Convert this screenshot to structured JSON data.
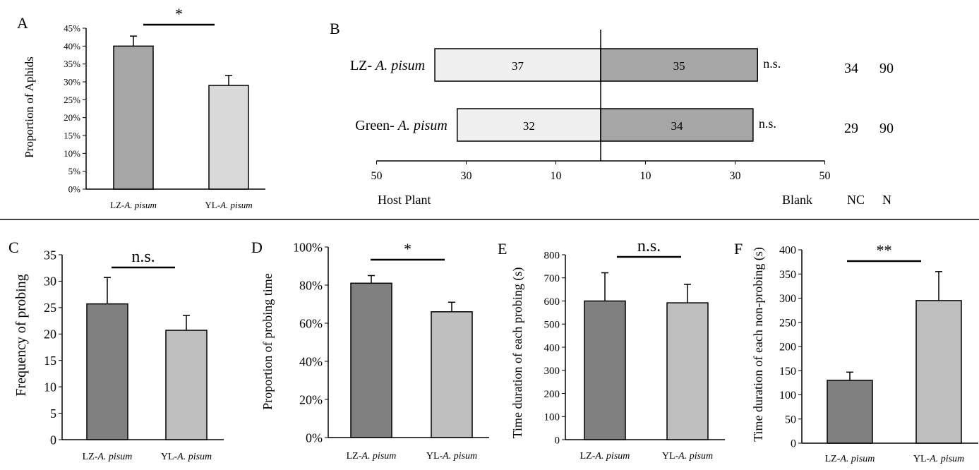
{
  "colors": {
    "dark_bar": "#808080",
    "a_lz_bar": "#a6a6a6",
    "light_bar": "#bfbfbf",
    "a_yl_bar": "#d9d9d9",
    "b_left_bar": "#f0f0f0",
    "b_right_bar": "#a6a6a6",
    "axis": "#000000"
  },
  "chart_data": [
    {
      "panel_label": "A",
      "type": "bar",
      "categories": [
        {
          "prefix": "LZ-",
          "species": "A. pisum"
        },
        {
          "prefix": "YL-",
          "species": "A. pisum"
        }
      ],
      "values": [
        40,
        29
      ],
      "errors": [
        2.8,
        2.8
      ],
      "ylabel": "Proportion of Aphids",
      "ylim": [
        0,
        45
      ],
      "yticks": [
        "0%",
        "5%",
        "10%",
        "15%",
        "20%",
        "25%",
        "30%",
        "35%",
        "40%",
        "45%"
      ],
      "significance": "*"
    },
    {
      "panel_label": "B",
      "type": "bar",
      "orientation": "horizontal-diverging",
      "rows": [
        {
          "prefix": "LZ- ",
          "species": "A. pisum",
          "host_plant": 37,
          "blank": 35,
          "sig": "n.s.",
          "NC": "34",
          "N": "90"
        },
        {
          "prefix": "Green- ",
          "species": "A. pisum",
          "host_plant": 32,
          "blank": 34,
          "sig": "n.s.",
          "NC": "29",
          "N": "90"
        }
      ],
      "xticks": [
        "50",
        "30",
        "10",
        "10",
        "30",
        "50"
      ],
      "left_label": "Host Plant",
      "right_label": "Blank",
      "nc_header": "NC",
      "n_header": "N",
      "xlim": [
        -50,
        50
      ]
    },
    {
      "panel_label": "C",
      "type": "bar",
      "categories": [
        {
          "prefix": "LZ-",
          "species": "A. pisum"
        },
        {
          "prefix": "YL-",
          "species": "A. pisum"
        }
      ],
      "values": [
        25.7,
        20.7
      ],
      "errors": [
        5,
        2.8
      ],
      "ylabel": "Frequency of probing",
      "ylim": [
        0,
        35
      ],
      "yticks": [
        "0",
        "5",
        "10",
        "15",
        "20",
        "25",
        "30",
        "35"
      ],
      "significance": "n.s."
    },
    {
      "panel_label": "D",
      "type": "bar",
      "categories": [
        {
          "prefix": "LZ-",
          "species": "A. pisum"
        },
        {
          "prefix": "YL-",
          "species": "A. pisum"
        }
      ],
      "values": [
        81,
        66
      ],
      "errors": [
        4,
        5
      ],
      "ylabel": "Proportion of probing time",
      "ylim": [
        0,
        100
      ],
      "yticks": [
        "0%",
        "20%",
        "40%",
        "60%",
        "80%",
        "100%"
      ],
      "significance": "*"
    },
    {
      "panel_label": "E",
      "type": "bar",
      "categories": [
        {
          "prefix": "LZ-",
          "species": "A. pisum"
        },
        {
          "prefix": "YL-",
          "species": "A. pisum"
        }
      ],
      "values": [
        600,
        592
      ],
      "errors": [
        122,
        80
      ],
      "ylabel": "Time duration of each probing (s)",
      "ylim": [
        0,
        800
      ],
      "yticks": [
        "0",
        "100",
        "200",
        "300",
        "400",
        "500",
        "600",
        "700",
        "800"
      ],
      "significance": "n.s."
    },
    {
      "panel_label": "F",
      "type": "bar",
      "categories": [
        {
          "prefix": "LZ-",
          "species": "A. pisum"
        },
        {
          "prefix": "YL-",
          "species": "A. pisum"
        }
      ],
      "values": [
        130,
        295
      ],
      "errors": [
        17,
        60
      ],
      "ylabel": "Time duration of each non-probing (s)",
      "ylim": [
        0,
        400
      ],
      "yticks": [
        "0",
        "50",
        "100",
        "150",
        "200",
        "250",
        "300",
        "350",
        "400"
      ],
      "significance": "**"
    }
  ]
}
